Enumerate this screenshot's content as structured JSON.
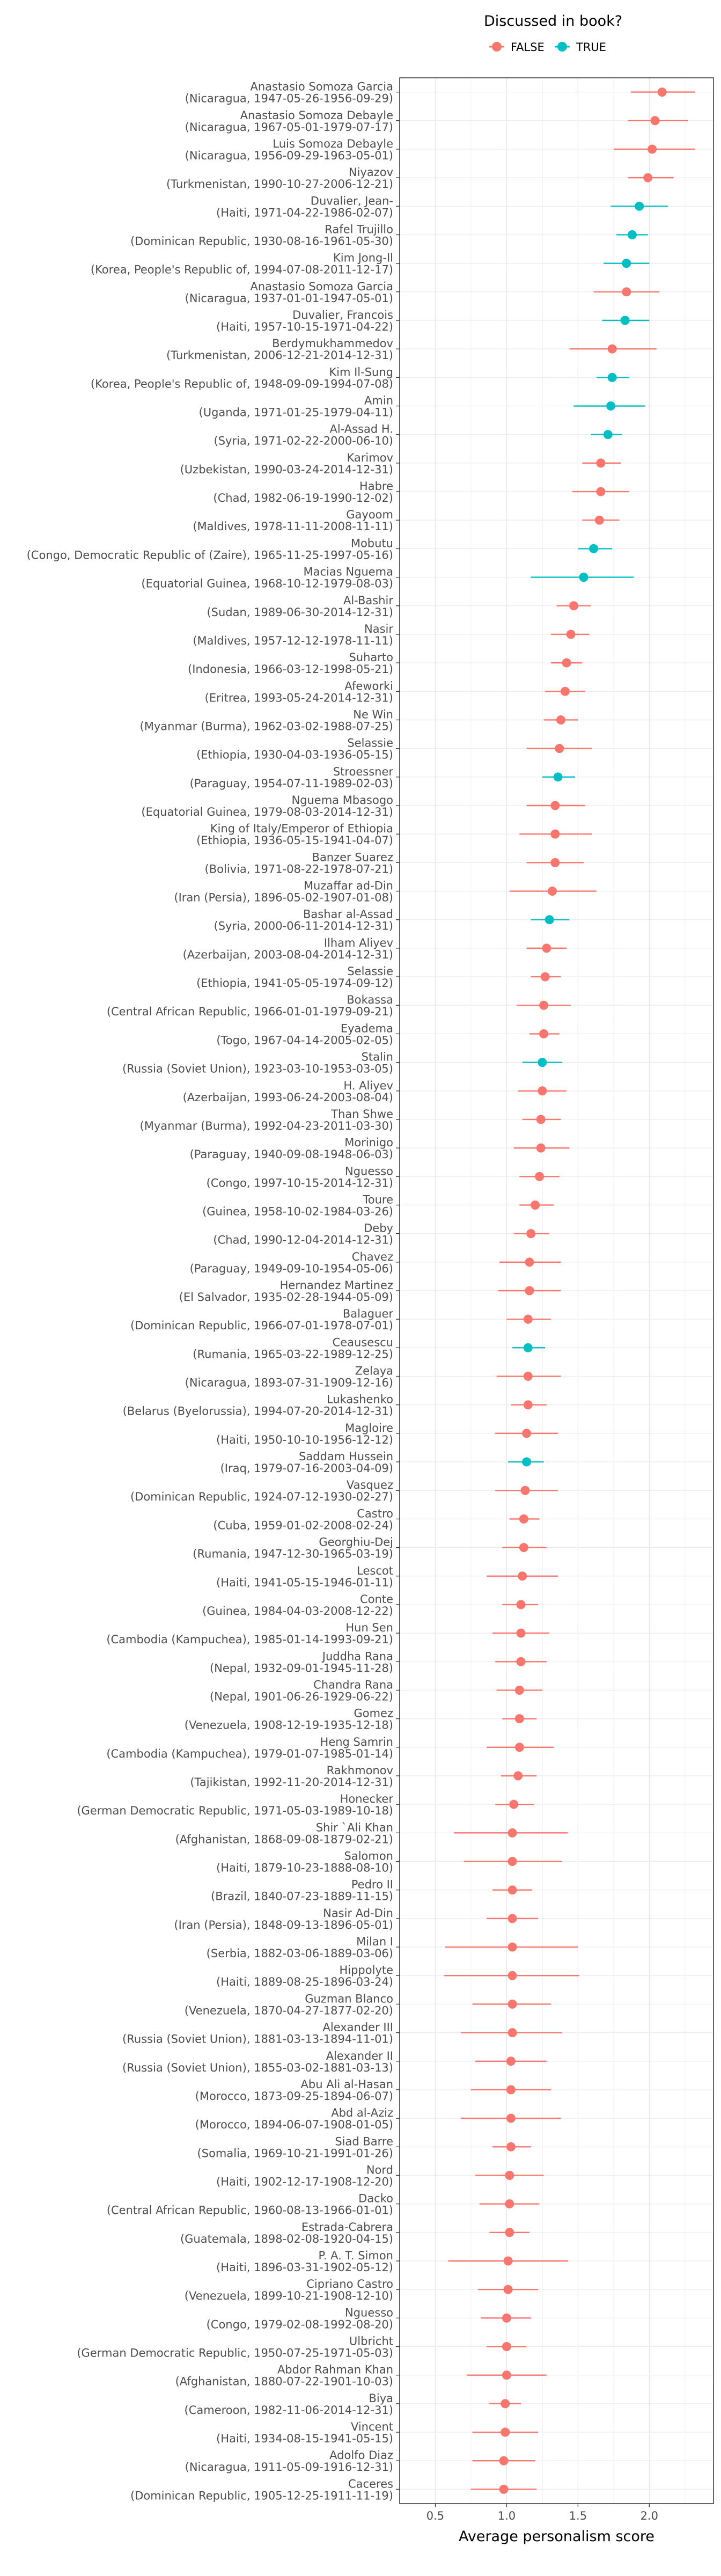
{
  "chart_data": {
    "type": "scatter",
    "subtype": "dot-and-whisker",
    "xlabel": "Average personalism score",
    "ylabel": "",
    "xlim": [
      0.25,
      2.45
    ],
    "x_ticks": [
      0.5,
      1.0,
      1.5,
      2.0
    ],
    "x_tick_labels": [
      "0.5",
      "1.0",
      "1.5",
      "2.0"
    ],
    "grid": true,
    "legend": {
      "title": "Discussed in book?",
      "position": "top",
      "entries": [
        {
          "label": "FALSE",
          "color": "#F8766D"
        },
        {
          "label": "TRUE",
          "color": "#00BFC4"
        }
      ]
    },
    "points": [
      {
        "name": "Anastasio Somoza Garcia",
        "detail": "(Nicaragua, 1947-05-26-1956-09-29)",
        "value": 2.09,
        "low": 1.87,
        "high": 2.32,
        "discussed": false
      },
      {
        "name": "Anastasio Somoza Debayle",
        "detail": "(Nicaragua, 1967-05-01-1979-07-17)",
        "value": 2.04,
        "low": 1.85,
        "high": 2.27,
        "discussed": false
      },
      {
        "name": "Luis Somoza Debayle",
        "detail": "(Nicaragua, 1956-09-29-1963-05-01)",
        "value": 2.02,
        "low": 1.75,
        "high": 2.32,
        "discussed": false
      },
      {
        "name": "Niyazov",
        "detail": "(Turkmenistan, 1990-10-27-2006-12-21)",
        "value": 1.99,
        "low": 1.85,
        "high": 2.17,
        "discussed": false
      },
      {
        "name": "Duvalier, Jean-",
        "detail": "(Haiti, 1971-04-22-1986-02-07)",
        "value": 1.93,
        "low": 1.73,
        "high": 2.13,
        "discussed": true
      },
      {
        "name": "Rafel Trujillo",
        "detail": "(Dominican Republic, 1930-08-16-1961-05-30)",
        "value": 1.88,
        "low": 1.77,
        "high": 1.99,
        "discussed": true
      },
      {
        "name": "Kim Jong-Il",
        "detail": "(Korea, People's Republic of, 1994-07-08-2011-12-17)",
        "value": 1.84,
        "low": 1.68,
        "high": 2.0,
        "discussed": true
      },
      {
        "name": "Anastasio Somoza Garcia",
        "detail": "(Nicaragua, 1937-01-01-1947-05-01)",
        "value": 1.84,
        "low": 1.61,
        "high": 2.07,
        "discussed": false
      },
      {
        "name": "Duvalier, Francois",
        "detail": "(Haiti, 1957-10-15-1971-04-22)",
        "value": 1.83,
        "low": 1.67,
        "high": 2.0,
        "discussed": true
      },
      {
        "name": "Berdymukhammedov",
        "detail": "(Turkmenistan, 2006-12-21-2014-12-31)",
        "value": 1.74,
        "low": 1.44,
        "high": 2.05,
        "discussed": false
      },
      {
        "name": "Kim Il-Sung",
        "detail": "(Korea, People's Republic of, 1948-09-09-1994-07-08)",
        "value": 1.74,
        "low": 1.63,
        "high": 1.86,
        "discussed": true
      },
      {
        "name": "Amin",
        "detail": "(Uganda, 1971-01-25-1979-04-11)",
        "value": 1.73,
        "low": 1.47,
        "high": 1.97,
        "discussed": true
      },
      {
        "name": "Al-Assad H.",
        "detail": "(Syria, 1971-02-22-2000-06-10)",
        "value": 1.71,
        "low": 1.59,
        "high": 1.81,
        "discussed": true
      },
      {
        "name": "Karimov",
        "detail": "(Uzbekistan, 1990-03-24-2014-12-31)",
        "value": 1.66,
        "low": 1.53,
        "high": 1.8,
        "discussed": false
      },
      {
        "name": "Habre",
        "detail": "(Chad, 1982-06-19-1990-12-02)",
        "value": 1.66,
        "low": 1.46,
        "high": 1.86,
        "discussed": false
      },
      {
        "name": "Gayoom",
        "detail": "(Maldives, 1978-11-11-2008-11-11)",
        "value": 1.65,
        "low": 1.53,
        "high": 1.79,
        "discussed": false
      },
      {
        "name": "Mobutu",
        "detail": "(Congo, Democratic Republic of (Zaire), 1965-11-25-1997-05-16)",
        "value": 1.61,
        "low": 1.5,
        "high": 1.74,
        "discussed": true
      },
      {
        "name": "Macias Nguema",
        "detail": "(Equatorial Guinea, 1968-10-12-1979-08-03)",
        "value": 1.54,
        "low": 1.17,
        "high": 1.89,
        "discussed": true
      },
      {
        "name": "Al-Bashir",
        "detail": "(Sudan, 1989-06-30-2014-12-31)",
        "value": 1.47,
        "low": 1.35,
        "high": 1.59,
        "discussed": false
      },
      {
        "name": "Nasir",
        "detail": "(Maldives, 1957-12-12-1978-11-11)",
        "value": 1.45,
        "low": 1.31,
        "high": 1.58,
        "discussed": false
      },
      {
        "name": "Suharto",
        "detail": "(Indonesia, 1966-03-12-1998-05-21)",
        "value": 1.42,
        "low": 1.31,
        "high": 1.53,
        "discussed": false
      },
      {
        "name": "Afeworki",
        "detail": "(Eritrea, 1993-05-24-2014-12-31)",
        "value": 1.41,
        "low": 1.27,
        "high": 1.55,
        "discussed": false
      },
      {
        "name": "Ne Win",
        "detail": "(Myanmar (Burma), 1962-03-02-1988-07-25)",
        "value": 1.38,
        "low": 1.26,
        "high": 1.5,
        "discussed": false
      },
      {
        "name": "Selassie",
        "detail": "(Ethiopia, 1930-04-03-1936-05-15)",
        "value": 1.37,
        "low": 1.14,
        "high": 1.6,
        "discussed": false
      },
      {
        "name": "Stroessner",
        "detail": "(Paraguay, 1954-07-11-1989-02-03)",
        "value": 1.36,
        "low": 1.25,
        "high": 1.48,
        "discussed": true
      },
      {
        "name": "Nguema Mbasogo",
        "detail": "(Equatorial Guinea, 1979-08-03-2014-12-31)",
        "value": 1.34,
        "low": 1.14,
        "high": 1.55,
        "discussed": false
      },
      {
        "name": "King of Italy/Emperor of Ethiopia",
        "detail": "(Ethiopia, 1936-05-15-1941-04-07)",
        "value": 1.34,
        "low": 1.09,
        "high": 1.6,
        "discussed": false
      },
      {
        "name": "Banzer Suarez",
        "detail": "(Bolivia, 1971-08-22-1978-07-21)",
        "value": 1.34,
        "low": 1.14,
        "high": 1.54,
        "discussed": false
      },
      {
        "name": "Muzaffar ad-Din",
        "detail": "(Iran (Persia), 1896-05-02-1907-01-08)",
        "value": 1.32,
        "low": 1.02,
        "high": 1.63,
        "discussed": false
      },
      {
        "name": "Bashar al-Assad",
        "detail": "(Syria, 2000-06-11-2014-12-31)",
        "value": 1.3,
        "low": 1.17,
        "high": 1.44,
        "discussed": true
      },
      {
        "name": "Ilham Aliyev",
        "detail": "(Azerbaijan, 2003-08-04-2014-12-31)",
        "value": 1.28,
        "low": 1.14,
        "high": 1.42,
        "discussed": false
      },
      {
        "name": "Selassie",
        "detail": "(Ethiopia, 1941-05-05-1974-09-12)",
        "value": 1.27,
        "low": 1.17,
        "high": 1.38,
        "discussed": false
      },
      {
        "name": "Bokassa",
        "detail": "(Central African Republic, 1966-01-01-1979-09-21)",
        "value": 1.26,
        "low": 1.07,
        "high": 1.45,
        "discussed": false
      },
      {
        "name": "Eyadema",
        "detail": "(Togo, 1967-04-14-2005-02-05)",
        "value": 1.26,
        "low": 1.16,
        "high": 1.37,
        "discussed": false
      },
      {
        "name": "Stalin",
        "detail": "(Russia (Soviet Union), 1923-03-10-1953-03-05)",
        "value": 1.25,
        "low": 1.11,
        "high": 1.39,
        "discussed": true
      },
      {
        "name": "H. Aliyev",
        "detail": "(Azerbaijan, 1993-06-24-2003-08-04)",
        "value": 1.25,
        "low": 1.08,
        "high": 1.42,
        "discussed": false
      },
      {
        "name": "Than Shwe",
        "detail": "(Myanmar (Burma), 1992-04-23-2011-03-30)",
        "value": 1.24,
        "low": 1.11,
        "high": 1.38,
        "discussed": false
      },
      {
        "name": "Morinigo",
        "detail": "(Paraguay, 1940-09-08-1948-06-03)",
        "value": 1.24,
        "low": 1.05,
        "high": 1.44,
        "discussed": false
      },
      {
        "name": "Nguesso",
        "detail": "(Congo, 1997-10-15-2014-12-31)",
        "value": 1.23,
        "low": 1.09,
        "high": 1.37,
        "discussed": false
      },
      {
        "name": "Toure",
        "detail": "(Guinea, 1958-10-02-1984-03-26)",
        "value": 1.2,
        "low": 1.09,
        "high": 1.33,
        "discussed": false
      },
      {
        "name": "Deby",
        "detail": "(Chad, 1990-12-04-2014-12-31)",
        "value": 1.17,
        "low": 1.05,
        "high": 1.3,
        "discussed": false
      },
      {
        "name": "Chavez",
        "detail": "(Paraguay, 1949-09-10-1954-05-06)",
        "value": 1.16,
        "low": 0.95,
        "high": 1.38,
        "discussed": false
      },
      {
        "name": "Hernandez Martinez",
        "detail": "(El Salvador, 1935-02-28-1944-05-09)",
        "value": 1.16,
        "low": 0.94,
        "high": 1.38,
        "discussed": false
      },
      {
        "name": "Balaguer",
        "detail": "(Dominican Republic, 1966-07-01-1978-07-01)",
        "value": 1.15,
        "low": 1.0,
        "high": 1.31,
        "discussed": false
      },
      {
        "name": "Ceausescu",
        "detail": "(Rumania, 1965-03-22-1989-12-25)",
        "value": 1.15,
        "low": 1.04,
        "high": 1.27,
        "discussed": true
      },
      {
        "name": "Zelaya",
        "detail": "(Nicaragua, 1893-07-31-1909-12-16)",
        "value": 1.15,
        "low": 0.93,
        "high": 1.38,
        "discussed": false
      },
      {
        "name": "Lukashenko",
        "detail": "(Belarus (Byelorussia), 1994-07-20-2014-12-31)",
        "value": 1.15,
        "low": 1.03,
        "high": 1.28,
        "discussed": false
      },
      {
        "name": "Magloire",
        "detail": "(Haiti, 1950-10-10-1956-12-12)",
        "value": 1.14,
        "low": 0.92,
        "high": 1.36,
        "discussed": false
      },
      {
        "name": "Saddam Hussein",
        "detail": "(Iraq, 1979-07-16-2003-04-09)",
        "value": 1.14,
        "low": 1.01,
        "high": 1.26,
        "discussed": true
      },
      {
        "name": "Vasquez",
        "detail": "(Dominican Republic, 1924-07-12-1930-02-27)",
        "value": 1.13,
        "low": 0.92,
        "high": 1.36,
        "discussed": false
      },
      {
        "name": "Castro",
        "detail": "(Cuba, 1959-01-02-2008-02-24)",
        "value": 1.12,
        "low": 1.02,
        "high": 1.23,
        "discussed": false
      },
      {
        "name": "Georghiu-Dej",
        "detail": "(Rumania, 1947-12-30-1965-03-19)",
        "value": 1.12,
        "low": 0.97,
        "high": 1.28,
        "discussed": false
      },
      {
        "name": "Lescot",
        "detail": "(Haiti, 1941-05-15-1946-01-11)",
        "value": 1.11,
        "low": 0.86,
        "high": 1.36,
        "discussed": false
      },
      {
        "name": "Conte",
        "detail": "(Guinea, 1984-04-03-2008-12-22)",
        "value": 1.1,
        "low": 0.97,
        "high": 1.22,
        "discussed": false
      },
      {
        "name": "Hun Sen",
        "detail": "(Cambodia (Kampuchea), 1985-01-14-1993-09-21)",
        "value": 1.1,
        "low": 0.9,
        "high": 1.3,
        "discussed": false
      },
      {
        "name": "Juddha Rana",
        "detail": "(Nepal, 1932-09-01-1945-11-28)",
        "value": 1.1,
        "low": 0.92,
        "high": 1.28,
        "discussed": false
      },
      {
        "name": "Chandra Rana",
        "detail": "(Nepal, 1901-06-26-1929-06-22)",
        "value": 1.09,
        "low": 0.93,
        "high": 1.25,
        "discussed": false
      },
      {
        "name": "Gomez",
        "detail": "(Venezuela, 1908-12-19-1935-12-18)",
        "value": 1.09,
        "low": 0.97,
        "high": 1.21,
        "discussed": false
      },
      {
        "name": "Heng Samrin",
        "detail": "(Cambodia (Kampuchea), 1979-01-07-1985-01-14)",
        "value": 1.09,
        "low": 0.86,
        "high": 1.33,
        "discussed": false
      },
      {
        "name": "Rakhmonov",
        "detail": "(Tajikistan, 1992-11-20-2014-12-31)",
        "value": 1.08,
        "low": 0.96,
        "high": 1.21,
        "discussed": false
      },
      {
        "name": "Honecker",
        "detail": "(German Democratic Republic, 1971-05-03-1989-10-18)",
        "value": 1.05,
        "low": 0.92,
        "high": 1.19,
        "discussed": false
      },
      {
        "name": "Shir `Ali Khan",
        "detail": "(Afghanistan, 1868-09-08-1879-02-21)",
        "value": 1.04,
        "low": 0.63,
        "high": 1.43,
        "discussed": false
      },
      {
        "name": "Salomon",
        "detail": "(Haiti, 1879-10-23-1888-08-10)",
        "value": 1.04,
        "low": 0.7,
        "high": 1.39,
        "discussed": false
      },
      {
        "name": "Pedro II",
        "detail": "(Brazil, 1840-07-23-1889-11-15)",
        "value": 1.04,
        "low": 0.9,
        "high": 1.18,
        "discussed": false
      },
      {
        "name": "Nasir Ad-Din",
        "detail": "(Iran (Persia), 1848-09-13-1896-05-01)",
        "value": 1.04,
        "low": 0.86,
        "high": 1.22,
        "discussed": false
      },
      {
        "name": "Milan I",
        "detail": "(Serbia, 1882-03-06-1889-03-06)",
        "value": 1.04,
        "low": 0.57,
        "high": 1.5,
        "discussed": false
      },
      {
        "name": "Hippolyte",
        "detail": "(Haiti, 1889-08-25-1896-03-24)",
        "value": 1.04,
        "low": 0.56,
        "high": 1.51,
        "discussed": false
      },
      {
        "name": "Guzman Blanco",
        "detail": "(Venezuela, 1870-04-27-1877-02-20)",
        "value": 1.04,
        "low": 0.76,
        "high": 1.31,
        "discussed": false
      },
      {
        "name": "Alexander III",
        "detail": "(Russia (Soviet Union), 1881-03-13-1894-11-01)",
        "value": 1.04,
        "low": 0.68,
        "high": 1.39,
        "discussed": false
      },
      {
        "name": "Alexander II",
        "detail": "(Russia (Soviet Union), 1855-03-02-1881-03-13)",
        "value": 1.03,
        "low": 0.78,
        "high": 1.28,
        "discussed": false
      },
      {
        "name": "Abu Ali al-Hasan",
        "detail": "(Morocco, 1873-09-25-1894-06-07)",
        "value": 1.03,
        "low": 0.75,
        "high": 1.31,
        "discussed": false
      },
      {
        "name": "Abd al-Aziz",
        "detail": "(Morocco, 1894-06-07-1908-01-05)",
        "value": 1.03,
        "low": 0.68,
        "high": 1.38,
        "discussed": false
      },
      {
        "name": "Siad Barre",
        "detail": "(Somalia, 1969-10-21-1991-01-26)",
        "value": 1.03,
        "low": 0.9,
        "high": 1.17,
        "discussed": false
      },
      {
        "name": "Nord",
        "detail": "(Haiti, 1902-12-17-1908-12-20)",
        "value": 1.02,
        "low": 0.78,
        "high": 1.26,
        "discussed": false
      },
      {
        "name": "Dacko",
        "detail": "(Central African Republic, 1960-08-13-1966-01-01)",
        "value": 1.02,
        "low": 0.81,
        "high": 1.23,
        "discussed": false
      },
      {
        "name": "Estrada-Cabrera",
        "detail": "(Guatemala, 1898-02-08-1920-04-15)",
        "value": 1.02,
        "low": 0.88,
        "high": 1.16,
        "discussed": false
      },
      {
        "name": "P. A. T. Simon",
        "detail": "(Haiti, 1896-03-31-1902-05-12)",
        "value": 1.01,
        "low": 0.59,
        "high": 1.43,
        "discussed": false
      },
      {
        "name": "Cipriano Castro",
        "detail": "(Venezuela, 1899-10-21-1908-12-10)",
        "value": 1.01,
        "low": 0.8,
        "high": 1.22,
        "discussed": false
      },
      {
        "name": "Nguesso",
        "detail": "(Congo, 1979-02-08-1992-08-20)",
        "value": 1.0,
        "low": 0.82,
        "high": 1.17,
        "discussed": false
      },
      {
        "name": "Ulbricht",
        "detail": "(German Democratic Republic, 1950-07-25-1971-05-03)",
        "value": 1.0,
        "low": 0.86,
        "high": 1.14,
        "discussed": false
      },
      {
        "name": "Abdor Rahman Khan",
        "detail": "(Afghanistan, 1880-07-22-1901-10-03)",
        "value": 1.0,
        "low": 0.72,
        "high": 1.28,
        "discussed": false
      },
      {
        "name": "Biya",
        "detail": "(Cameroon, 1982-11-06-2014-12-31)",
        "value": 0.99,
        "low": 0.88,
        "high": 1.1,
        "discussed": false
      },
      {
        "name": "Vincent",
        "detail": "(Haiti, 1934-08-15-1941-05-15)",
        "value": 0.99,
        "low": 0.76,
        "high": 1.22,
        "discussed": false
      },
      {
        "name": "Adolfo Diaz",
        "detail": "(Nicaragua, 1911-05-09-1916-12-31)",
        "value": 0.98,
        "low": 0.76,
        "high": 1.2,
        "discussed": false
      },
      {
        "name": "Caceres",
        "detail": "(Dominican Republic, 1905-12-25-1911-11-19)",
        "value": 0.98,
        "low": 0.75,
        "high": 1.21,
        "discussed": false
      }
    ]
  }
}
